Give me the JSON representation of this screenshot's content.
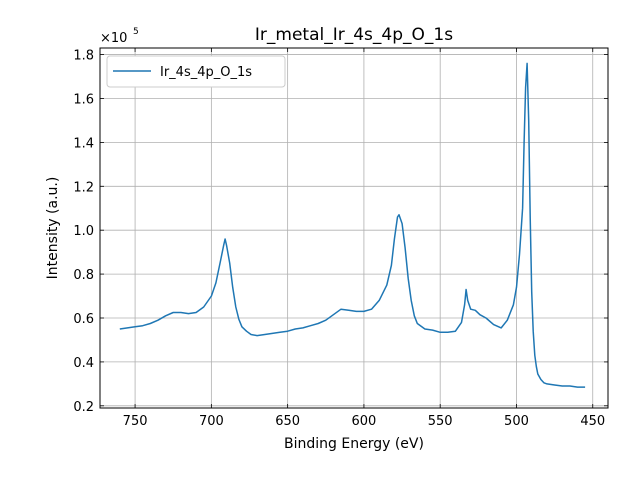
{
  "chart_data": {
    "type": "line",
    "title": "Ir_metal_Ir_4s_4p_O_1s",
    "xlabel": "Binding Energy (eV)",
    "ylabel": "Intensity (a.u.)",
    "y_multiplier_label": "×10",
    "y_multiplier_exponent": "5",
    "x_reversed": true,
    "xlim": [
      773,
      440
    ],
    "ylim": [
      0.19,
      1.83
    ],
    "y_scale_factor": 100000,
    "grid": true,
    "legend_position": "top-left",
    "xticks": [
      750,
      700,
      650,
      600,
      550,
      500,
      450
    ],
    "xtick_labels": [
      "750",
      "700",
      "650",
      "600",
      "550",
      "500",
      "450"
    ],
    "yticks": [
      0.2,
      0.4,
      0.6,
      0.8,
      1.0,
      1.2,
      1.4,
      1.6,
      1.8
    ],
    "ytick_labels": [
      "0.2",
      "0.4",
      "0.6",
      "0.8",
      "1.0",
      "1.2",
      "1.4",
      "1.6",
      "1.8"
    ],
    "series": [
      {
        "name": "Ir_4s_4p_O_1s",
        "color": "#1f77b4",
        "x": [
          760,
          755,
          750,
          745,
          740,
          735,
          730,
          725,
          720,
          715,
          710,
          705,
          700,
          697,
          694,
          692,
          691,
          690,
          688,
          686,
          684,
          682,
          680,
          677,
          674,
          670,
          665,
          660,
          655,
          650,
          645,
          640,
          635,
          630,
          625,
          620,
          615,
          610,
          605,
          600,
          595,
          590,
          585,
          582,
          580,
          578,
          577,
          575,
          573,
          571,
          569,
          567,
          565,
          560,
          555,
          550,
          545,
          540,
          536,
          534,
          533,
          532,
          530,
          527,
          524,
          520,
          515,
          510,
          506,
          502,
          500,
          498,
          496,
          495,
          494,
          493,
          492,
          491,
          490,
          489,
          488,
          487,
          486,
          484,
          482,
          480,
          475,
          470,
          465,
          460,
          455
        ],
        "y": [
          0.55,
          0.555,
          0.56,
          0.565,
          0.575,
          0.59,
          0.61,
          0.625,
          0.625,
          0.62,
          0.625,
          0.65,
          0.7,
          0.76,
          0.86,
          0.93,
          0.96,
          0.93,
          0.85,
          0.74,
          0.65,
          0.595,
          0.56,
          0.54,
          0.525,
          0.52,
          0.525,
          0.53,
          0.535,
          0.54,
          0.55,
          0.555,
          0.565,
          0.575,
          0.59,
          0.615,
          0.64,
          0.635,
          0.63,
          0.63,
          0.64,
          0.68,
          0.75,
          0.84,
          0.96,
          1.06,
          1.07,
          1.03,
          0.92,
          0.78,
          0.68,
          0.61,
          0.575,
          0.55,
          0.545,
          0.535,
          0.535,
          0.54,
          0.58,
          0.66,
          0.73,
          0.68,
          0.64,
          0.635,
          0.615,
          0.6,
          0.57,
          0.555,
          0.59,
          0.66,
          0.74,
          0.89,
          1.1,
          1.4,
          1.65,
          1.76,
          1.5,
          1.06,
          0.72,
          0.54,
          0.43,
          0.38,
          0.345,
          0.32,
          0.305,
          0.3,
          0.295,
          0.29,
          0.29,
          0.285,
          0.285
        ]
      }
    ]
  }
}
